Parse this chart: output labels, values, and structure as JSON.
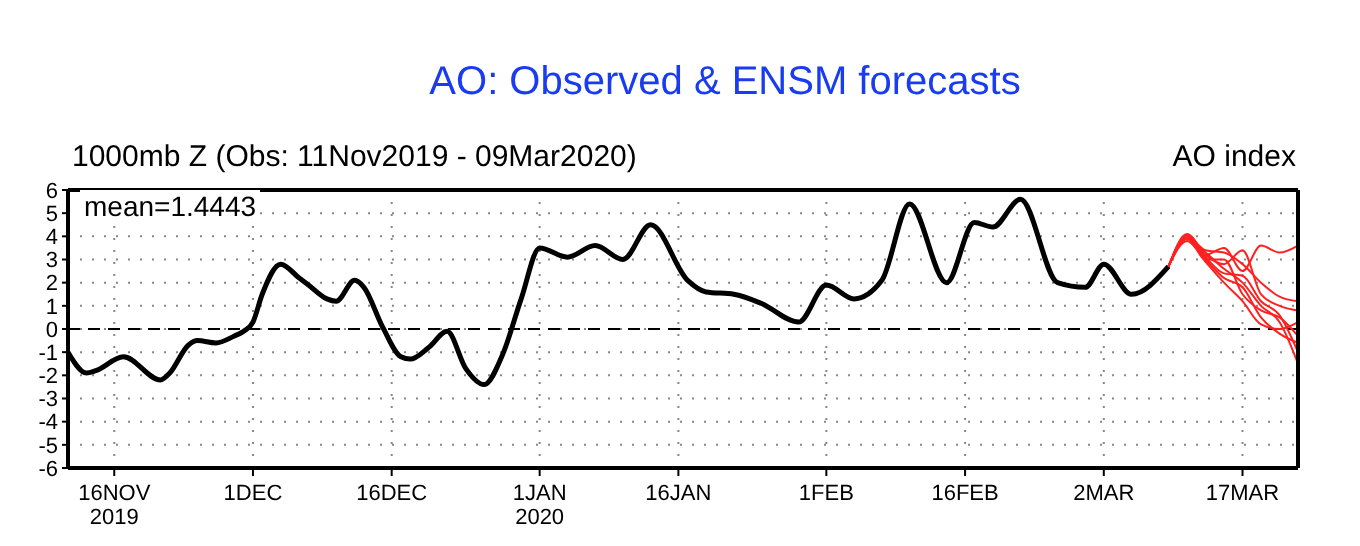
{
  "chart_data": {
    "type": "line",
    "title": "AO: Observed & ENSM forecasts",
    "subtitle": "1000mb Z (Obs: 11Nov2019 - 09Mar2020)",
    "annotations": [
      "mean=1.4443",
      "AO index"
    ],
    "xlim": [
      "2019-11-11",
      "2020-03-23"
    ],
    "xticks": [
      {
        "value": "2019-11-16",
        "label": "16NOV\n2019"
      },
      {
        "value": "2019-12-01",
        "label": "1DEC"
      },
      {
        "value": "2019-12-16",
        "label": "16DEC"
      },
      {
        "value": "2020-01-01",
        "label": "1JAN\n2020"
      },
      {
        "value": "2020-01-16",
        "label": "16JAN"
      },
      {
        "value": "2020-02-01",
        "label": "1FEB"
      },
      {
        "value": "2020-02-16",
        "label": "16FEB"
      },
      {
        "value": "2020-03-02",
        "label": "2MAR"
      },
      {
        "value": "2020-03-17",
        "label": "17MAR"
      }
    ],
    "ylim": [
      -6,
      6
    ],
    "yticks": [
      -6,
      -5,
      -4,
      -3,
      -2,
      -1,
      0,
      1,
      2,
      3,
      4,
      5,
      6
    ],
    "grid": true,
    "marker": "none",
    "line_style": "solid",
    "ref_lines": [
      {
        "axis": "y",
        "value": 0,
        "color": "#000000",
        "line_style": "dashed"
      }
    ],
    "series": [
      {
        "color": "#000000",
        "x": [
          "2019-11-11",
          "2019-11-13",
          "2019-11-14",
          "2019-11-17",
          "2019-11-21",
          "2019-11-22",
          "2019-11-24",
          "2019-11-25",
          "2019-11-27",
          "2019-11-29",
          "2019-11-30",
          "2019-12-01",
          "2019-12-02",
          "2019-12-04",
          "2019-12-06",
          "2019-12-07",
          "2019-12-09",
          "2019-12-10",
          "2019-12-12",
          "2019-12-13",
          "2019-12-15",
          "2019-12-17",
          "2019-12-18",
          "2019-12-20",
          "2019-12-22",
          "2019-12-24",
          "2019-12-26",
          "2019-12-28",
          "2019-12-30",
          "2020-01-01",
          "2020-01-04",
          "2020-01-07",
          "2020-01-10",
          "2020-01-13",
          "2020-01-17",
          "2020-01-19",
          "2020-01-22",
          "2020-01-25",
          "2020-01-29",
          "2020-02-01",
          "2020-02-04",
          "2020-02-07",
          "2020-02-10",
          "2020-02-14",
          "2020-02-17",
          "2020-02-19",
          "2020-02-22",
          "2020-02-26",
          "2020-02-29",
          "2020-03-02",
          "2020-03-05",
          "2020-03-09"
        ],
        "values": [
          -1.0,
          -1.9,
          -1.8,
          -1.2,
          -2.2,
          -1.9,
          -0.7,
          -0.5,
          -0.6,
          -0.3,
          -0.1,
          0.3,
          1.5,
          2.8,
          2.2,
          1.9,
          1.3,
          1.2,
          2.1,
          1.8,
          0.1,
          -1.2,
          -1.3,
          -0.8,
          -0.1,
          -1.7,
          -2.4,
          -1.1,
          1.3,
          3.5,
          3.1,
          3.6,
          3.0,
          4.5,
          2.1,
          1.6,
          1.5,
          1.1,
          0.3,
          1.9,
          1.3,
          2.1,
          5.4,
          2.0,
          4.6,
          4.4,
          5.6,
          2.0,
          1.8,
          2.8,
          1.5,
          2.7
        ]
      },
      {
        "color": "#ff2020",
        "x": [
          "2020-03-09",
          "2020-03-11",
          "2020-03-13",
          "2020-03-15",
          "2020-03-17",
          "2020-03-19",
          "2020-03-21",
          "2020-03-23"
        ],
        "values": [
          2.7,
          4.0,
          3.2,
          3.5,
          2.5,
          3.6,
          3.3,
          3.6
        ]
      },
      {
        "color": "#ff2020",
        "x": [
          "2020-03-09",
          "2020-03-11",
          "2020-03-13",
          "2020-03-15",
          "2020-03-17",
          "2020-03-19",
          "2020-03-21",
          "2020-03-23"
        ],
        "values": [
          2.7,
          4.0,
          3.0,
          3.0,
          1.5,
          0.8,
          0.5,
          -0.3
        ]
      },
      {
        "color": "#ff2020",
        "x": [
          "2020-03-09",
          "2020-03-11",
          "2020-03-13",
          "2020-03-15",
          "2020-03-17",
          "2020-03-19",
          "2020-03-21",
          "2020-03-23"
        ],
        "values": [
          2.7,
          3.9,
          3.3,
          2.6,
          2.0,
          1.0,
          0.3,
          -1.5
        ]
      },
      {
        "color": "#ff2020",
        "x": [
          "2020-03-09",
          "2020-03-11",
          "2020-03-13",
          "2020-03-15",
          "2020-03-17",
          "2020-03-19",
          "2020-03-21",
          "2020-03-23"
        ],
        "values": [
          2.7,
          4.1,
          3.2,
          2.8,
          3.4,
          1.5,
          1.0,
          0.8
        ]
      },
      {
        "color": "#ff2020",
        "x": [
          "2020-03-09",
          "2020-03-11",
          "2020-03-13",
          "2020-03-15",
          "2020-03-17",
          "2020-03-19",
          "2020-03-21",
          "2020-03-23"
        ],
        "values": [
          2.7,
          3.9,
          3.0,
          2.2,
          1.8,
          0.5,
          -0.2,
          -0.6
        ]
      },
      {
        "color": "#ff2020",
        "x": [
          "2020-03-09",
          "2020-03-11",
          "2020-03-13",
          "2020-03-15",
          "2020-03-17",
          "2020-03-19",
          "2020-03-21",
          "2020-03-23"
        ],
        "values": [
          2.7,
          4.0,
          3.4,
          3.3,
          2.8,
          2.0,
          1.4,
          1.2
        ]
      },
      {
        "color": "#ff2020",
        "x": [
          "2020-03-09",
          "2020-03-11",
          "2020-03-13",
          "2020-03-15",
          "2020-03-17",
          "2020-03-19",
          "2020-03-21",
          "2020-03-23"
        ],
        "values": [
          2.7,
          3.8,
          2.9,
          2.0,
          1.2,
          0.2,
          0.0,
          0.3
        ]
      },
      {
        "color": "#ff2020",
        "x": [
          "2020-03-09",
          "2020-03-11",
          "2020-03-13",
          "2020-03-15",
          "2020-03-17",
          "2020-03-19",
          "2020-03-21",
          "2020-03-23"
        ],
        "values": [
          2.7,
          4.0,
          3.1,
          2.4,
          2.3,
          1.2,
          0.6,
          -1.0
        ]
      }
    ]
  }
}
